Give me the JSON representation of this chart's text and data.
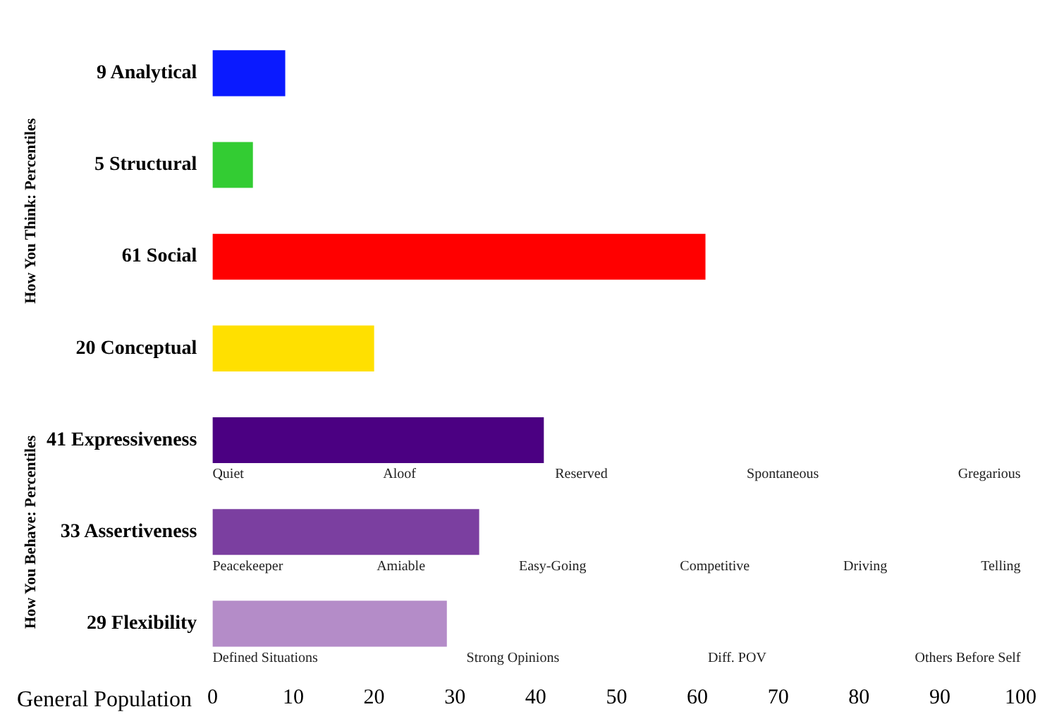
{
  "chart_data": {
    "type": "bar",
    "orientation": "horizontal",
    "xlabel": "General Population",
    "categories": [
      "9 Analytical",
      "5 Structural",
      "61 Social",
      "20 Conceptual",
      "41 Expressiveness",
      "33 Assertiveness",
      "29 Flexibility"
    ],
    "values": [
      9,
      5,
      61,
      20,
      41,
      33,
      29
    ],
    "colors": [
      "#0a1aff",
      "#33cc33",
      "#ff0000",
      "#ffe000",
      "#4b0082",
      "#7b3fa0",
      "#b48cc8"
    ],
    "xlim": [
      0,
      100
    ],
    "xticks": [
      0,
      10,
      20,
      30,
      40,
      50,
      60,
      70,
      80,
      90,
      100
    ],
    "grid": false,
    "annotations": [
      "How You Think: Percentiles",
      "How You Behave: Percentiles",
      "Quiet",
      "Aloof",
      "Reserved",
      "Spontaneous",
      "Gregarious",
      "Peacekeeper",
      "Amiable",
      "Easy-Going",
      "Competitive",
      "Driving",
      "Telling",
      "Defined Situations",
      "Strong Opinions",
      "Diff. POV",
      "Others Before Self"
    ]
  }
}
